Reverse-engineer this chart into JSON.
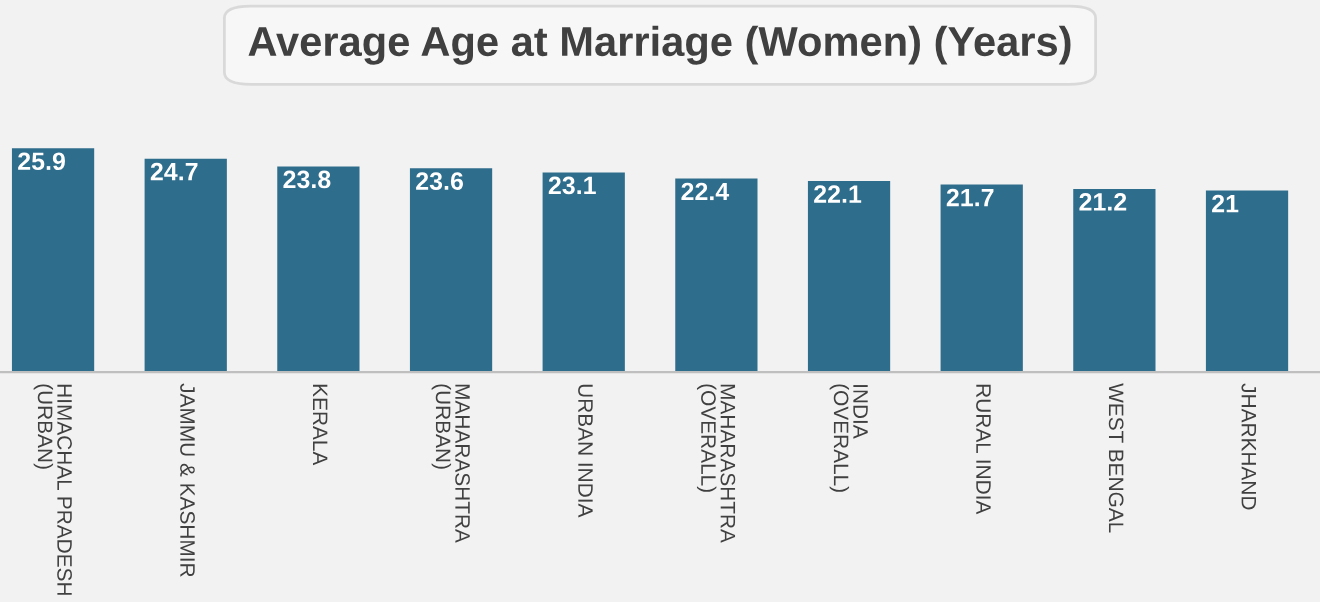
{
  "chart_data": {
    "type": "bar",
    "title": "Average Age at Marriage (Women) (Years)",
    "categories": [
      "HIMACHAL PRADESH (URBAN)",
      "JAMMU & KASHMIR",
      "KERALA",
      "MAHARASHTRA (URBAN)",
      "URBAN INDIA",
      "MAHARASHTRA (OVERALL)",
      "INDIA (OVERALL)",
      "RURAL INDIA",
      "WEST BENGAL",
      "JHARKHAND"
    ],
    "values": [
      25.9,
      24.7,
      23.8,
      23.6,
      23.1,
      22.4,
      22.1,
      21.7,
      21.2,
      21
    ],
    "color": "#2e6d8c",
    "data_labels": true,
    "grid": false,
    "legend": false
  }
}
